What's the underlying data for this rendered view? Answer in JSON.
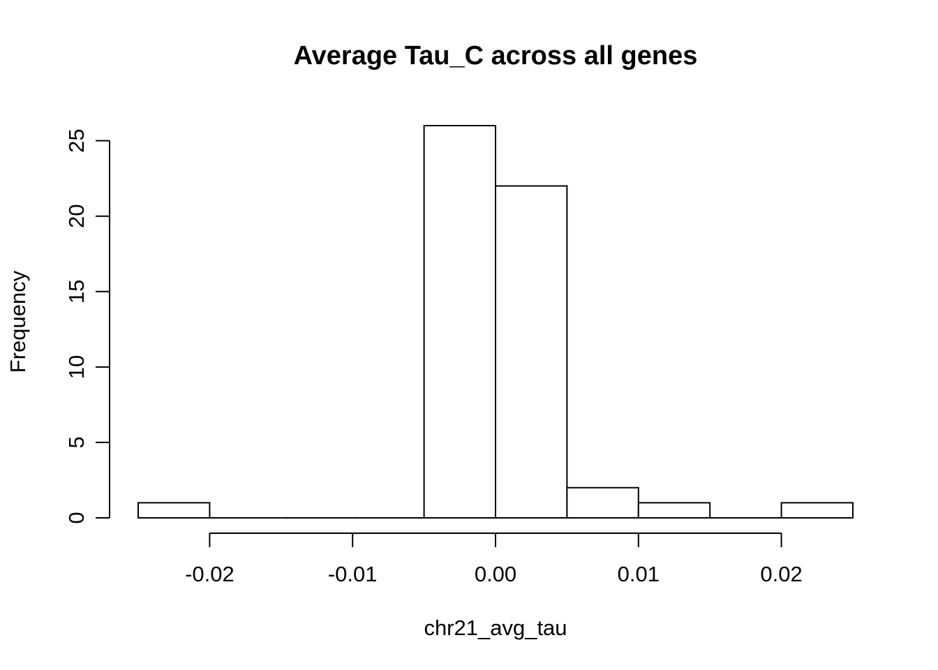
{
  "chart_data": {
    "type": "bar",
    "subtype": "histogram",
    "title": "Average Tau_C across all genes",
    "xlabel": "chr21_avg_tau",
    "ylabel": "Frequency",
    "bins": [
      {
        "start": -0.025,
        "end": -0.02,
        "count": 1
      },
      {
        "start": -0.02,
        "end": -0.015,
        "count": 0
      },
      {
        "start": -0.015,
        "end": -0.01,
        "count": 0
      },
      {
        "start": -0.01,
        "end": -0.005,
        "count": 0
      },
      {
        "start": -0.005,
        "end": 0.0,
        "count": 26
      },
      {
        "start": 0.0,
        "end": 0.005,
        "count": 22
      },
      {
        "start": 0.005,
        "end": 0.01,
        "count": 2
      },
      {
        "start": 0.01,
        "end": 0.015,
        "count": 1
      },
      {
        "start": 0.015,
        "end": 0.02,
        "count": 0
      },
      {
        "start": 0.02,
        "end": 0.025,
        "count": 1
      }
    ],
    "x_ticks": [
      -0.02,
      -0.01,
      0.0,
      0.01,
      0.02
    ],
    "x_tick_labels": [
      "-0.02",
      "-0.01",
      "0.00",
      "0.01",
      "0.02"
    ],
    "y_ticks": [
      0,
      5,
      10,
      15,
      20,
      25
    ],
    "y_tick_labels": [
      "0",
      "5",
      "10",
      "15",
      "20",
      "25"
    ],
    "xlim": [
      -0.025,
      0.025
    ],
    "ylim": [
      0,
      26
    ],
    "grid": false,
    "legend": "none"
  }
}
